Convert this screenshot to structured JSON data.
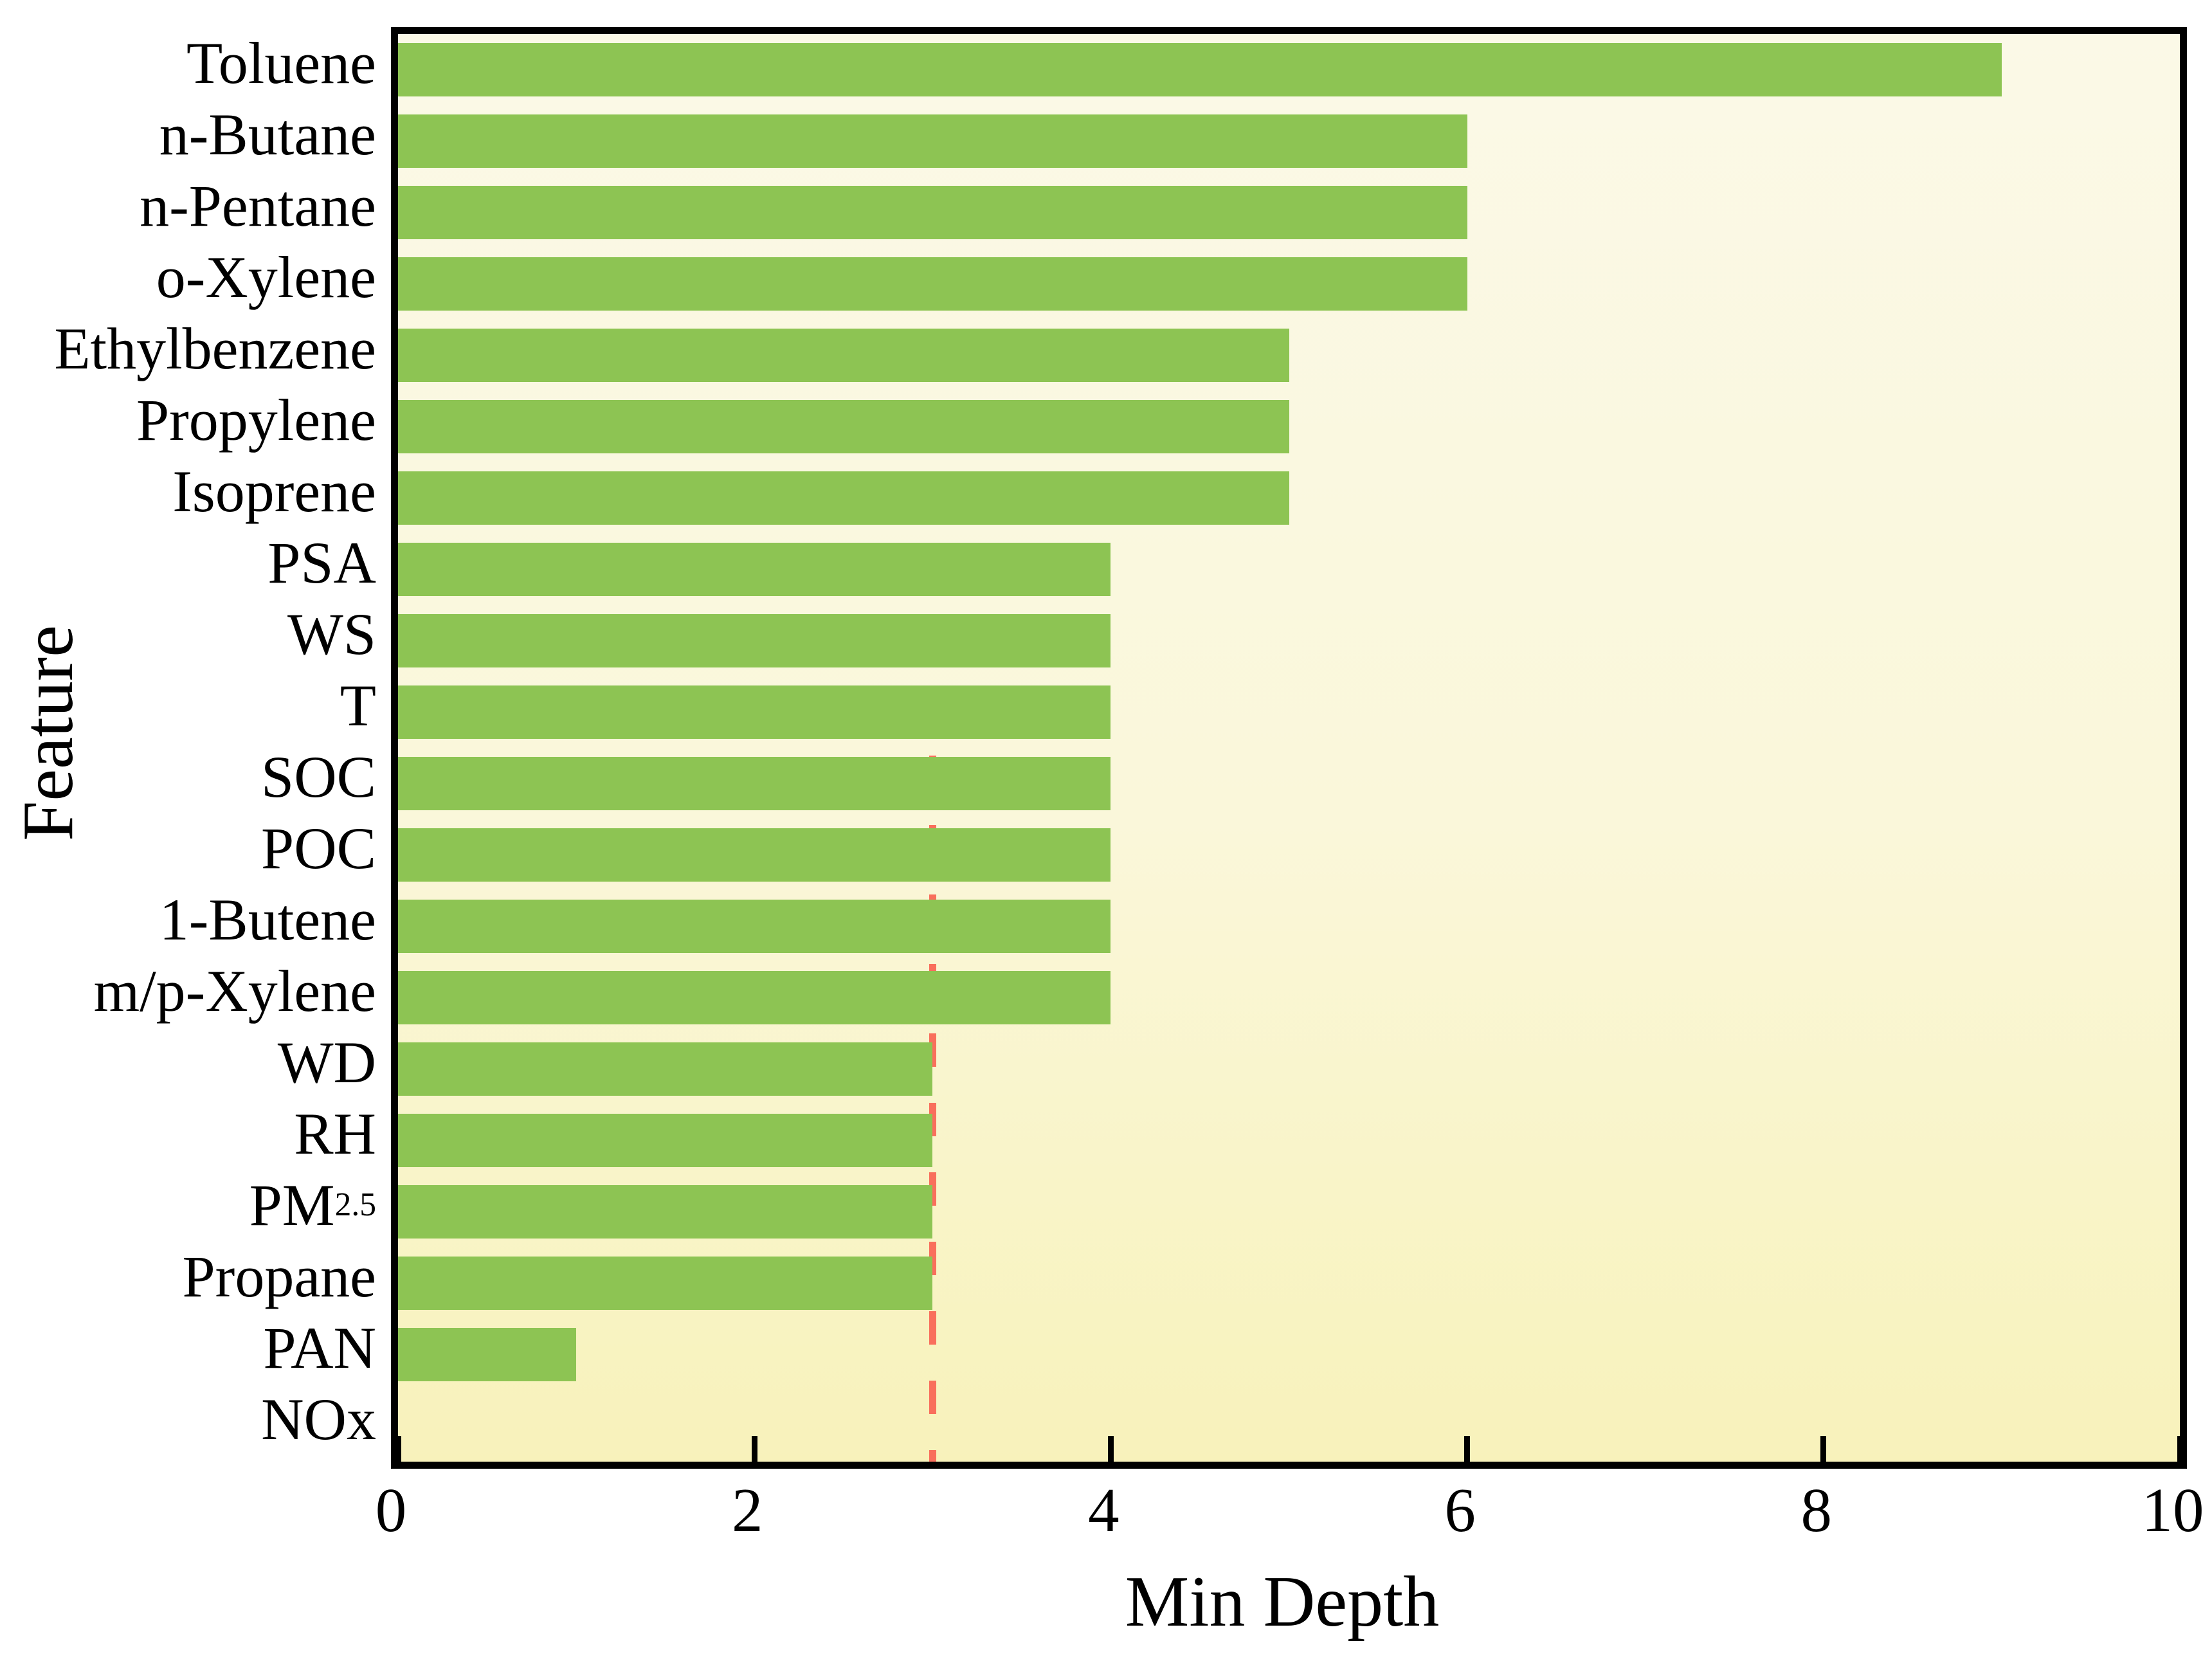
{
  "chart_data": {
    "type": "bar",
    "orientation": "horizontal",
    "title": "",
    "xlabel": "Min Depth",
    "ylabel": "Feature",
    "xlim": [
      0,
      10
    ],
    "xticks": [
      0,
      2,
      4,
      6,
      8,
      10
    ],
    "grid": false,
    "legend": null,
    "categories": [
      {
        "text": "Toluene"
      },
      {
        "text": "n-Butane"
      },
      {
        "text": "n-Pentane"
      },
      {
        "text": "o-Xylene"
      },
      {
        "text": "Ethylbenzene"
      },
      {
        "text": "Propylene"
      },
      {
        "text": "Isoprene"
      },
      {
        "text": "PSA"
      },
      {
        "text": "WS"
      },
      {
        "text": "T"
      },
      {
        "text": "SOC"
      },
      {
        "text": "POC"
      },
      {
        "text": "1-Butene"
      },
      {
        "text": "m/p-Xylene"
      },
      {
        "text": "WD"
      },
      {
        "text": "RH"
      },
      {
        "text": "PM",
        "sub": "2.5"
      },
      {
        "text": "Propane"
      },
      {
        "text": "PAN"
      },
      {
        "text": "NOx"
      }
    ],
    "values": [
      9,
      6,
      6,
      6,
      5,
      5,
      5,
      4,
      4,
      4,
      4,
      4,
      4,
      4,
      3,
      3,
      3,
      3,
      1,
      0
    ],
    "reference_line": {
      "x": 3,
      "style": "dashed",
      "color": "#F96F5C"
    },
    "colors": {
      "bar": "#8DC453",
      "plot_bg_top": "#FBF9E7",
      "plot_bg_bottom": "#F8F2BB",
      "axis": "#000000",
      "text": "#000000"
    }
  }
}
